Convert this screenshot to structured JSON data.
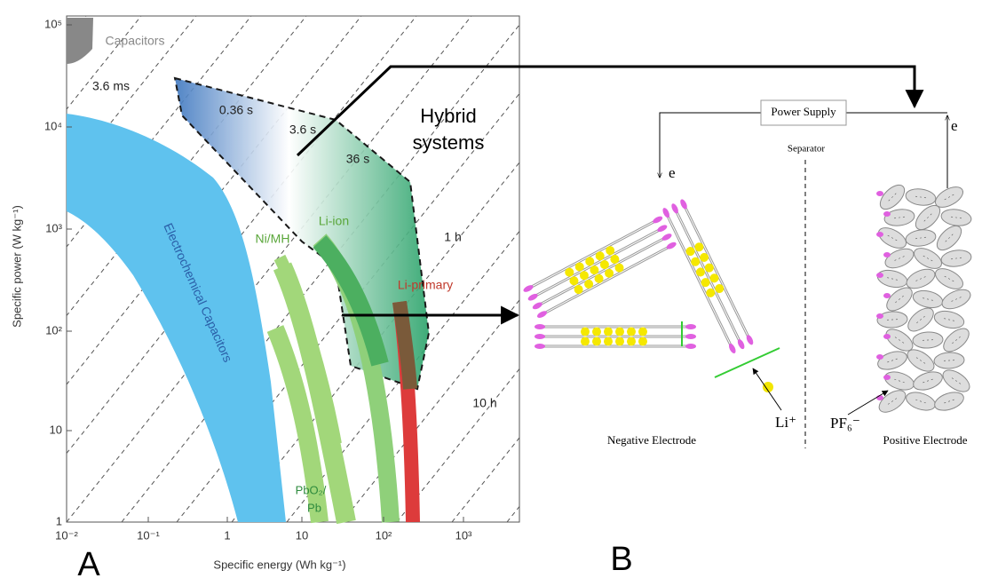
{
  "panel_a": {
    "label": "A",
    "x_axis_label": "Specific energy (Wh kg⁻¹)",
    "y_axis_label": "Specific power (W kg⁻¹)",
    "x_ticks": [
      "10⁻²",
      "10⁻¹",
      "1",
      "10",
      "10²",
      "10³"
    ],
    "y_ticks": [
      "10⁵",
      "10⁴",
      "10³",
      "10²",
      "10",
      "1"
    ],
    "regions": {
      "capacitors": "Capacitors",
      "electrochemical_capacitors": "Electrochemical Capacitors",
      "ni_mh": "Ni/MH",
      "li_ion": "Li-ion",
      "li_primary": "Li-primary",
      "pbo2": "PbO₂/",
      "pb": "Pb",
      "hybrid_line1": "Hybrid",
      "hybrid_line2": "systems"
    },
    "time_lines": [
      "3.6 ms",
      "0.36 s",
      "3.6 s",
      "36 s",
      "1 h",
      "10 h"
    ]
  },
  "panel_b": {
    "label": "B",
    "power_supply": "Power Supply",
    "separator": "Separator",
    "electron_left": "e",
    "electron_right": "e",
    "li_ion": "Li⁺",
    "pf6": "PF₆⁻",
    "negative_electrode": "Negative Electrode",
    "positive_electrode": "Positive Electrode"
  }
}
